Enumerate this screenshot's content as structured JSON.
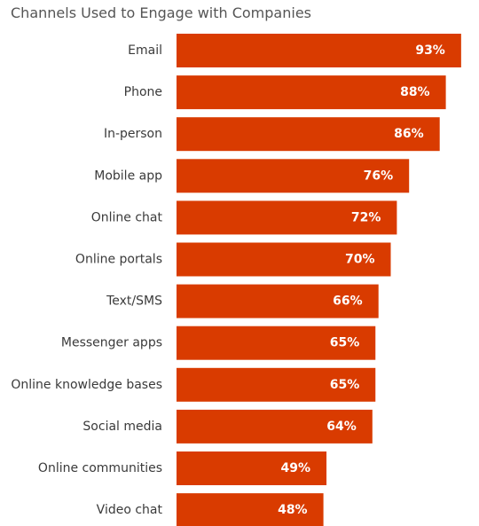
{
  "chart_data": {
    "type": "bar",
    "orientation": "horizontal",
    "title": "Channels Used to Engage with Companies",
    "categories": [
      "Email",
      "Phone",
      "In-person",
      "Mobile app",
      "Online chat",
      "Online  portals",
      "Text/SMS",
      "Messenger apps",
      "Online knowledge bases",
      "Social media",
      "Online communities",
      "Video chat"
    ],
    "values": [
      93,
      88,
      86,
      76,
      72,
      70,
      66,
      65,
      65,
      64,
      49,
      48
    ],
    "value_labels": [
      "93%",
      "88%",
      "86%",
      "76%",
      "72%",
      "70%",
      "66%",
      "65%",
      "65%",
      "64%",
      "49%",
      "48%"
    ],
    "bar_color": "#d93b00",
    "xlim": [
      0,
      100
    ],
    "grid": false,
    "legend": "none"
  }
}
